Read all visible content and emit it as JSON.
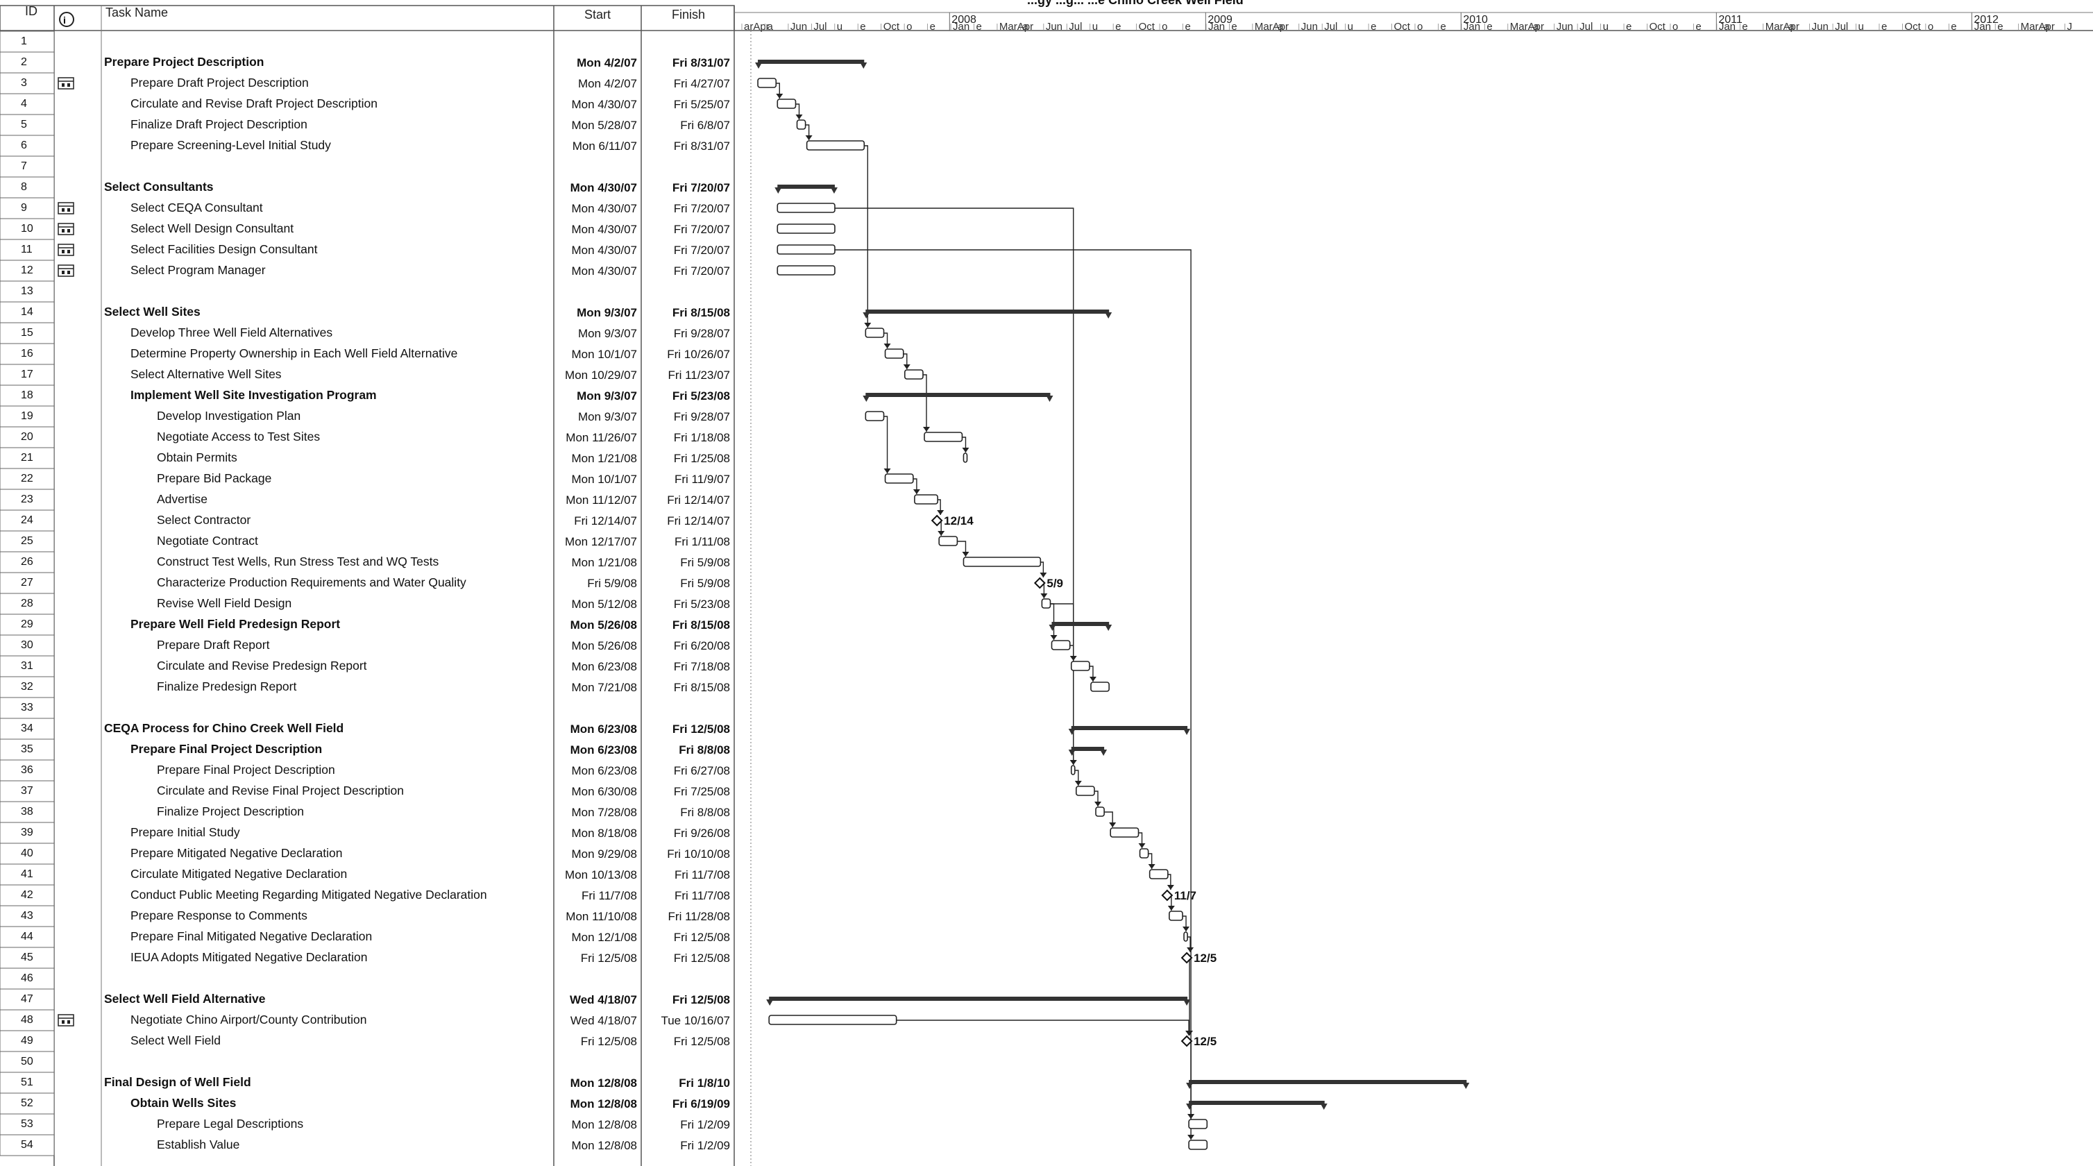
{
  "title_fragment": "...gy ...g... ...e Chino Creek Well Field",
  "columns": {
    "id": "ID",
    "info_icon": "i",
    "task": "Task Name",
    "start": "Start",
    "finish": "Finish"
  },
  "timeline": {
    "years": [
      {
        "label": "2008",
        "date": "2008-01-01"
      },
      {
        "label": "2009",
        "date": "2009-01-01"
      },
      {
        "label": "2010",
        "date": "2010-01-01"
      },
      {
        "label": "2011",
        "date": "2011-01-01"
      },
      {
        "label": "2012",
        "date": "2012-01-01"
      }
    ],
    "ticks": [
      "arApr",
      "a",
      "Jun",
      "Jul",
      "u",
      "e",
      "Oct",
      "o",
      "e",
      "Jan",
      "e",
      "MarApr",
      "a",
      "Jun",
      "Jul",
      "u",
      "e",
      "Oct",
      "o",
      "e",
      "Jan",
      "e",
      "MarApr",
      "a",
      "Jun",
      "Jul",
      "u",
      "e",
      "Oct",
      "o",
      "e",
      "Jan",
      "e",
      "MarApr",
      "a",
      "Jun",
      "Jul",
      "u",
      "e",
      "Oct",
      "o",
      "e",
      "Jan",
      "e",
      "MarApr",
      "a",
      "Jun",
      "Jul",
      "u",
      "e",
      "Oct",
      "o",
      "e",
      "Jan",
      "e",
      "MarApr",
      "a",
      "J"
    ]
  },
  "tasks": [
    {
      "id": "1",
      "name": "",
      "start": "",
      "finish": "",
      "level": 0,
      "summary": false
    },
    {
      "id": "2",
      "name": "Prepare Project Description",
      "start": "Mon 4/2/07",
      "finish": "Fri 8/31/07",
      "level": 0,
      "summary": true
    },
    {
      "id": "3",
      "name": "Prepare Draft Project Description",
      "start": "Mon 4/2/07",
      "finish": "Fri 4/27/07",
      "level": 1,
      "summary": false,
      "note": true
    },
    {
      "id": "4",
      "name": "Circulate and Revise Draft Project Description",
      "start": "Mon 4/30/07",
      "finish": "Fri 5/25/07",
      "level": 1,
      "summary": false
    },
    {
      "id": "5",
      "name": "Finalize Draft Project Description",
      "start": "Mon 5/28/07",
      "finish": "Fri 6/8/07",
      "level": 1,
      "summary": false
    },
    {
      "id": "6",
      "name": "Prepare Screening-Level Initial Study",
      "start": "Mon 6/11/07",
      "finish": "Fri 8/31/07",
      "level": 1,
      "summary": false
    },
    {
      "id": "7",
      "name": "",
      "start": "",
      "finish": "",
      "level": 0,
      "summary": false
    },
    {
      "id": "8",
      "name": "Select Consultants",
      "start": "Mon 4/30/07",
      "finish": "Fri 7/20/07",
      "level": 0,
      "summary": true
    },
    {
      "id": "9",
      "name": "Select CEQA Consultant",
      "start": "Mon 4/30/07",
      "finish": "Fri 7/20/07",
      "level": 1,
      "summary": false,
      "note": true
    },
    {
      "id": "10",
      "name": "Select Well Design Consultant",
      "start": "Mon 4/30/07",
      "finish": "Fri 7/20/07",
      "level": 1,
      "summary": false,
      "note": true
    },
    {
      "id": "11",
      "name": "Select Facilities Design Consultant",
      "start": "Mon 4/30/07",
      "finish": "Fri 7/20/07",
      "level": 1,
      "summary": false,
      "note": true
    },
    {
      "id": "12",
      "name": "Select Program Manager",
      "start": "Mon 4/30/07",
      "finish": "Fri 7/20/07",
      "level": 1,
      "summary": false,
      "note": true
    },
    {
      "id": "13",
      "name": "",
      "start": "",
      "finish": "",
      "level": 0,
      "summary": false
    },
    {
      "id": "14",
      "name": "Select Well Sites",
      "start": "Mon 9/3/07",
      "finish": "Fri 8/15/08",
      "level": 0,
      "summary": true
    },
    {
      "id": "15",
      "name": "Develop Three Well Field Alternatives",
      "start": "Mon 9/3/07",
      "finish": "Fri 9/28/07",
      "level": 1,
      "summary": false
    },
    {
      "id": "16",
      "name": "Determine Property Ownership in Each Well Field Alternative",
      "start": "Mon 10/1/07",
      "finish": "Fri 10/26/07",
      "level": 1,
      "summary": false
    },
    {
      "id": "17",
      "name": "Select Alternative Well Sites",
      "start": "Mon 10/29/07",
      "finish": "Fri 11/23/07",
      "level": 1,
      "summary": false
    },
    {
      "id": "18",
      "name": "Implement Well Site Investigation Program",
      "start": "Mon 9/3/07",
      "finish": "Fri 5/23/08",
      "level": 1,
      "summary": true
    },
    {
      "id": "19",
      "name": "Develop Investigation Plan",
      "start": "Mon 9/3/07",
      "finish": "Fri 9/28/07",
      "level": 2,
      "summary": false
    },
    {
      "id": "20",
      "name": "Negotiate Access to Test Sites",
      "start": "Mon 11/26/07",
      "finish": "Fri 1/18/08",
      "level": 2,
      "summary": false
    },
    {
      "id": "21",
      "name": "Obtain Permits",
      "start": "Mon 1/21/08",
      "finish": "Fri 1/25/08",
      "level": 2,
      "summary": false
    },
    {
      "id": "22",
      "name": "Prepare Bid Package",
      "start": "Mon 10/1/07",
      "finish": "Fri 11/9/07",
      "level": 2,
      "summary": false
    },
    {
      "id": "23",
      "name": "Advertise",
      "start": "Mon 11/12/07",
      "finish": "Fri 12/14/07",
      "level": 2,
      "summary": false
    },
    {
      "id": "24",
      "name": "Select Contractor",
      "start": "Fri 12/14/07",
      "finish": "Fri 12/14/07",
      "level": 2,
      "summary": false,
      "milestone": true,
      "mlabel": "12/14"
    },
    {
      "id": "25",
      "name": "Negotiate Contract",
      "start": "Mon 12/17/07",
      "finish": "Fri 1/11/08",
      "level": 2,
      "summary": false
    },
    {
      "id": "26",
      "name": "Construct Test Wells, Run Stress Test and WQ Tests",
      "start": "Mon 1/21/08",
      "finish": "Fri 5/9/08",
      "level": 2,
      "summary": false
    },
    {
      "id": "27",
      "name": "Characterize Production Requirements and Water Quality",
      "start": "Fri 5/9/08",
      "finish": "Fri 5/9/08",
      "level": 2,
      "summary": false,
      "milestone": true,
      "mlabel": "5/9"
    },
    {
      "id": "28",
      "name": "Revise Well Field Design",
      "start": "Mon 5/12/08",
      "finish": "Fri 5/23/08",
      "level": 2,
      "summary": false
    },
    {
      "id": "29",
      "name": "Prepare Well Field Predesign Report",
      "start": "Mon 5/26/08",
      "finish": "Fri 8/15/08",
      "level": 1,
      "summary": true
    },
    {
      "id": "30",
      "name": "Prepare Draft Report",
      "start": "Mon 5/26/08",
      "finish": "Fri 6/20/08",
      "level": 2,
      "summary": false
    },
    {
      "id": "31",
      "name": "Circulate and Revise Predesign Report",
      "start": "Mon 6/23/08",
      "finish": "Fri 7/18/08",
      "level": 2,
      "summary": false
    },
    {
      "id": "32",
      "name": "Finalize Predesign Report",
      "start": "Mon 7/21/08",
      "finish": "Fri 8/15/08",
      "level": 2,
      "summary": false
    },
    {
      "id": "33",
      "name": "",
      "start": "",
      "finish": "",
      "level": 0,
      "summary": false
    },
    {
      "id": "34",
      "name": "CEQA Process for Chino Creek Well Field",
      "start": "Mon 6/23/08",
      "finish": "Fri 12/5/08",
      "level": 0,
      "summary": true
    },
    {
      "id": "35",
      "name": "Prepare Final Project Description",
      "start": "Mon 6/23/08",
      "finish": "Fri 8/8/08",
      "level": 1,
      "summary": true
    },
    {
      "id": "36",
      "name": "Prepare Final Project Description",
      "start": "Mon 6/23/08",
      "finish": "Fri 6/27/08",
      "level": 2,
      "summary": false
    },
    {
      "id": "37",
      "name": "Circulate and Revise Final Project Description",
      "start": "Mon 6/30/08",
      "finish": "Fri 7/25/08",
      "level": 2,
      "summary": false
    },
    {
      "id": "38",
      "name": "Finalize Project Description",
      "start": "Mon 7/28/08",
      "finish": "Fri 8/8/08",
      "level": 2,
      "summary": false
    },
    {
      "id": "39",
      "name": "Prepare Initial Study",
      "start": "Mon 8/18/08",
      "finish": "Fri 9/26/08",
      "level": 1,
      "summary": false
    },
    {
      "id": "40",
      "name": "Prepare Mitigated Negative Declaration",
      "start": "Mon 9/29/08",
      "finish": "Fri 10/10/08",
      "level": 1,
      "summary": false
    },
    {
      "id": "41",
      "name": "Circulate Mitigated Negative Declaration",
      "start": "Mon 10/13/08",
      "finish": "Fri 11/7/08",
      "level": 1,
      "summary": false
    },
    {
      "id": "42",
      "name": "Conduct Public Meeting Regarding Mitigated Negative Declaration",
      "start": "Fri 11/7/08",
      "finish": "Fri 11/7/08",
      "level": 1,
      "summary": false,
      "milestone": true,
      "mlabel": "11/7"
    },
    {
      "id": "43",
      "name": "Prepare Response to Comments",
      "start": "Mon 11/10/08",
      "finish": "Fri 11/28/08",
      "level": 1,
      "summary": false
    },
    {
      "id": "44",
      "name": "Prepare Final Mitigated Negative Declaration",
      "start": "Mon 12/1/08",
      "finish": "Fri 12/5/08",
      "level": 1,
      "summary": false
    },
    {
      "id": "45",
      "name": "IEUA Adopts Mitigated Negative Declaration",
      "start": "Fri 12/5/08",
      "finish": "Fri 12/5/08",
      "level": 1,
      "summary": false,
      "milestone": true,
      "mlabel": "12/5"
    },
    {
      "id": "46",
      "name": "",
      "start": "",
      "finish": "",
      "level": 0,
      "summary": false
    },
    {
      "id": "47",
      "name": "Select Well Field Alternative",
      "start": "Wed 4/18/07",
      "finish": "Fri 12/5/08",
      "level": 0,
      "summary": true
    },
    {
      "id": "48",
      "name": "Negotiate Chino Airport/County Contribution",
      "start": "Wed 4/18/07",
      "finish": "Tue 10/16/07",
      "level": 1,
      "summary": false,
      "note": true
    },
    {
      "id": "49",
      "name": "Select Well Field",
      "start": "Fri 12/5/08",
      "finish": "Fri 12/5/08",
      "level": 1,
      "summary": false,
      "milestone": true,
      "mlabel": "12/5"
    },
    {
      "id": "50",
      "name": "",
      "start": "",
      "finish": "",
      "level": 0,
      "summary": false
    },
    {
      "id": "51",
      "name": "Final Design of Well Field",
      "start": "Mon 12/8/08",
      "finish": "Fri 1/8/10",
      "level": 0,
      "summary": true
    },
    {
      "id": "52",
      "name": "Obtain Wells Sites",
      "start": "Mon 12/8/08",
      "finish": "Fri 6/19/09",
      "level": 1,
      "summary": true
    },
    {
      "id": "53",
      "name": "Prepare Legal Descriptions",
      "start": "Mon 12/8/08",
      "finish": "Fri 1/2/09",
      "level": 2,
      "summary": false
    },
    {
      "id": "54",
      "name": "Establish Value",
      "start": "Mon 12/8/08",
      "finish": "Fri 1/2/09",
      "level": 2,
      "summary": false
    }
  ],
  "links": [
    [
      "3",
      "4"
    ],
    [
      "4",
      "5"
    ],
    [
      "5",
      "6"
    ],
    [
      "6",
      "15"
    ],
    [
      "15",
      "16"
    ],
    [
      "16",
      "17"
    ],
    [
      "19",
      "22"
    ],
    [
      "22",
      "23"
    ],
    [
      "23",
      "24"
    ],
    [
      "24",
      "25"
    ],
    [
      "17",
      "20"
    ],
    [
      "20",
      "21"
    ],
    [
      "25",
      "26"
    ],
    [
      "26",
      "27"
    ],
    [
      "27",
      "28"
    ],
    [
      "28",
      "30"
    ],
    [
      "30",
      "31"
    ],
    [
      "31",
      "32"
    ],
    [
      "28",
      "36"
    ],
    [
      "36",
      "37"
    ],
    [
      "37",
      "38"
    ],
    [
      "38",
      "39"
    ],
    [
      "39",
      "40"
    ],
    [
      "40",
      "41"
    ],
    [
      "41",
      "42"
    ],
    [
      "42",
      "43"
    ],
    [
      "43",
      "44"
    ],
    [
      "44",
      "45"
    ],
    [
      "45",
      "49"
    ],
    [
      "48",
      "49"
    ],
    [
      "9",
      "36"
    ],
    [
      "11",
      "53"
    ],
    [
      "49",
      "53"
    ],
    [
      "49",
      "54"
    ]
  ],
  "colors": {
    "bar_fill": "#ffffff",
    "bar_stroke": "#222222",
    "summary": "#333333",
    "grid": "#999999"
  }
}
